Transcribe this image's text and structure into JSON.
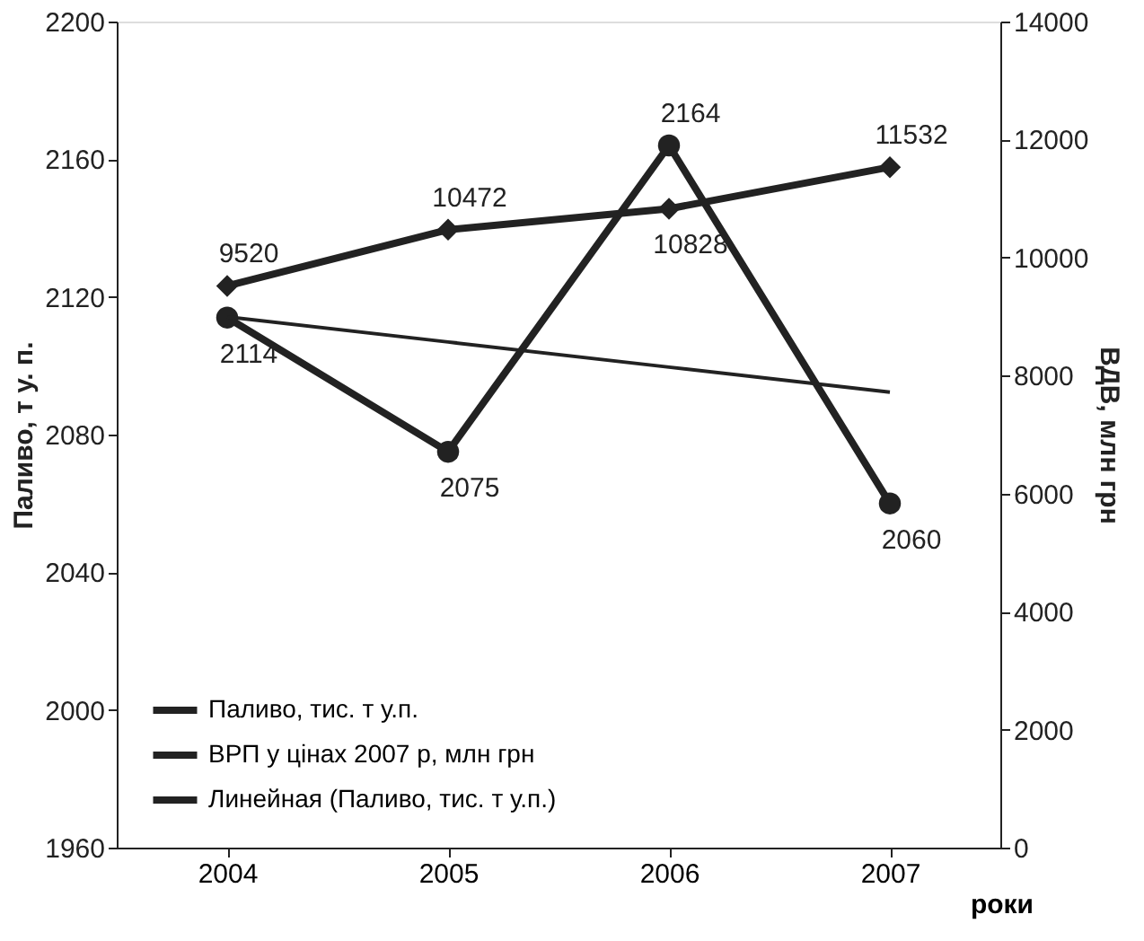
{
  "chart_data": {
    "type": "line",
    "xlabel": "роки",
    "ylabel": "Паливо, т у. п.",
    "y2label": "ВДВ, млн грн",
    "categories": [
      "2004",
      "2005",
      "2006",
      "2007"
    ],
    "series": [
      {
        "name": "Паливо, тис. т у.п.",
        "color": "#222222",
        "values": [
          2114,
          2075,
          2164,
          2060
        ],
        "marker": "circle",
        "value_labels": [
          "2114",
          "2075",
          "2164",
          "2060"
        ]
      },
      {
        "name": "ВРП у цінах 2007 р, млн грн",
        "color": "#222222",
        "values": [
          9520,
          10472,
          10828,
          11532
        ],
        "axis": "y2",
        "marker": "diamond",
        "value_labels": [
          "9520",
          "10472",
          "10828",
          "11532"
        ]
      },
      {
        "name": "Линейная (Паливо, тис. т у.п.)",
        "color": "#222222",
        "values": [
          2114.2,
          2106.9,
          2099.6,
          2092.3
        ],
        "marker": "none"
      }
    ],
    "ylim": [
      1960,
      2200
    ],
    "yticks": [
      1960,
      2000,
      2040,
      2080,
      2120,
      2160,
      2200
    ],
    "y2lim": [
      0,
      14000
    ],
    "y2ticks": [
      0,
      2000,
      4000,
      6000,
      8000,
      10000,
      12000,
      14000
    ],
    "legend": "bottom left"
  }
}
